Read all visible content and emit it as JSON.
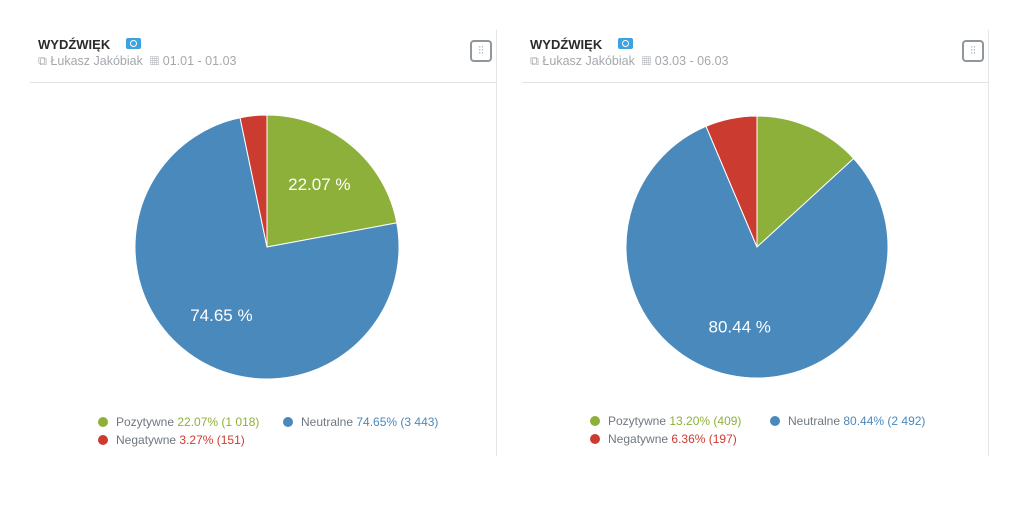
{
  "colors": {
    "pos": "#8db03a",
    "neu": "#4a89bc",
    "neg": "#cc3b30"
  },
  "chart_data": [
    {
      "type": "pie",
      "title": "WYDŹWIĘK",
      "author": "Łukasz Jakóbiak",
      "dates": "01.01 - 01.03",
      "slices": [
        {
          "name": "Pozytywne",
          "value": 22.07,
          "count": "1 018",
          "label": "22.07 %",
          "legend": "22.07% (1 018)"
        },
        {
          "name": "Neutralne",
          "value": 74.65,
          "count": "3 443",
          "label": "74.65 %",
          "legend": "74.65% (3 443)"
        },
        {
          "name": "Negatywne",
          "value": 3.27,
          "count": "151",
          "label": "",
          "legend": "3.27% (151)"
        }
      ]
    },
    {
      "type": "pie",
      "title": "WYDŹWIĘK",
      "author": "Łukasz Jakóbiak",
      "dates": "03.03 - 06.03",
      "slices": [
        {
          "name": "Pozytywne",
          "value": 13.2,
          "count": "409",
          "label": "",
          "legend": "13.20% (409)"
        },
        {
          "name": "Neutralne",
          "value": 80.44,
          "count": "2 492",
          "label": "80.44 %",
          "legend": "80.44% (2 492)"
        },
        {
          "name": "Negatywne",
          "value": 6.36,
          "count": "197",
          "label": "",
          "legend": "6.36% (197)"
        }
      ]
    }
  ]
}
